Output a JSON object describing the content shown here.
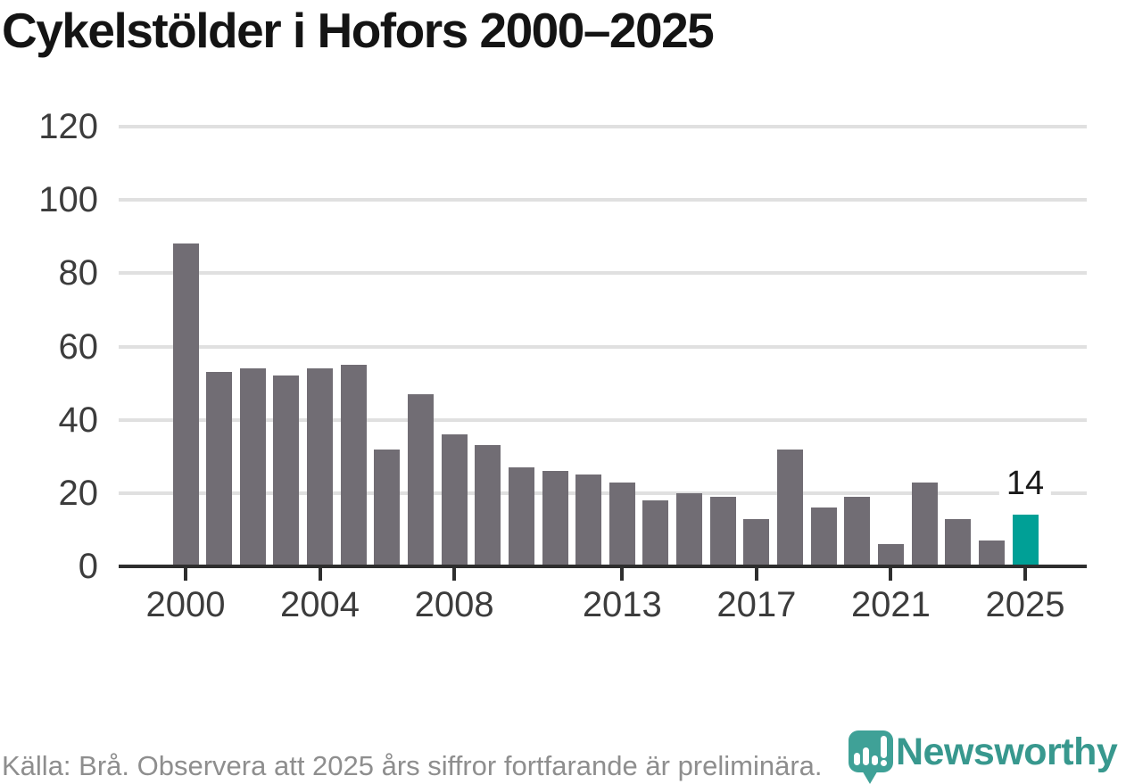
{
  "chart_data": {
    "type": "bar",
    "title": "Cykelstölder i Hofors 2000–2025",
    "categories": [
      2000,
      2001,
      2002,
      2003,
      2004,
      2005,
      2006,
      2007,
      2008,
      2009,
      2010,
      2011,
      2012,
      2013,
      2014,
      2015,
      2016,
      2017,
      2018,
      2019,
      2020,
      2021,
      2022,
      2023,
      2024,
      2025
    ],
    "values": [
      88,
      53,
      54,
      52,
      54,
      55,
      32,
      47,
      36,
      33,
      27,
      26,
      25,
      23,
      18,
      20,
      19,
      13,
      32,
      16,
      19,
      6,
      23,
      13,
      7,
      14
    ],
    "ylim": [
      0,
      120
    ],
    "yticks": [
      0,
      20,
      40,
      60,
      80,
      100,
      120
    ],
    "xtick_labels": [
      2000,
      2004,
      2008,
      2013,
      2017,
      2021,
      2025
    ],
    "grid": "horizontal",
    "legend": false,
    "bar_color": "#716d74",
    "highlight": {
      "category": 2025,
      "color": "#00a096",
      "label": "14"
    }
  },
  "footer": {
    "source_note": "Källa: Brå. Observera att 2025 års siffror fortfarande är preliminära.",
    "brand_name": "Newsworthy",
    "brand_color": "#38988e",
    "pin_color": "#3fa197"
  }
}
